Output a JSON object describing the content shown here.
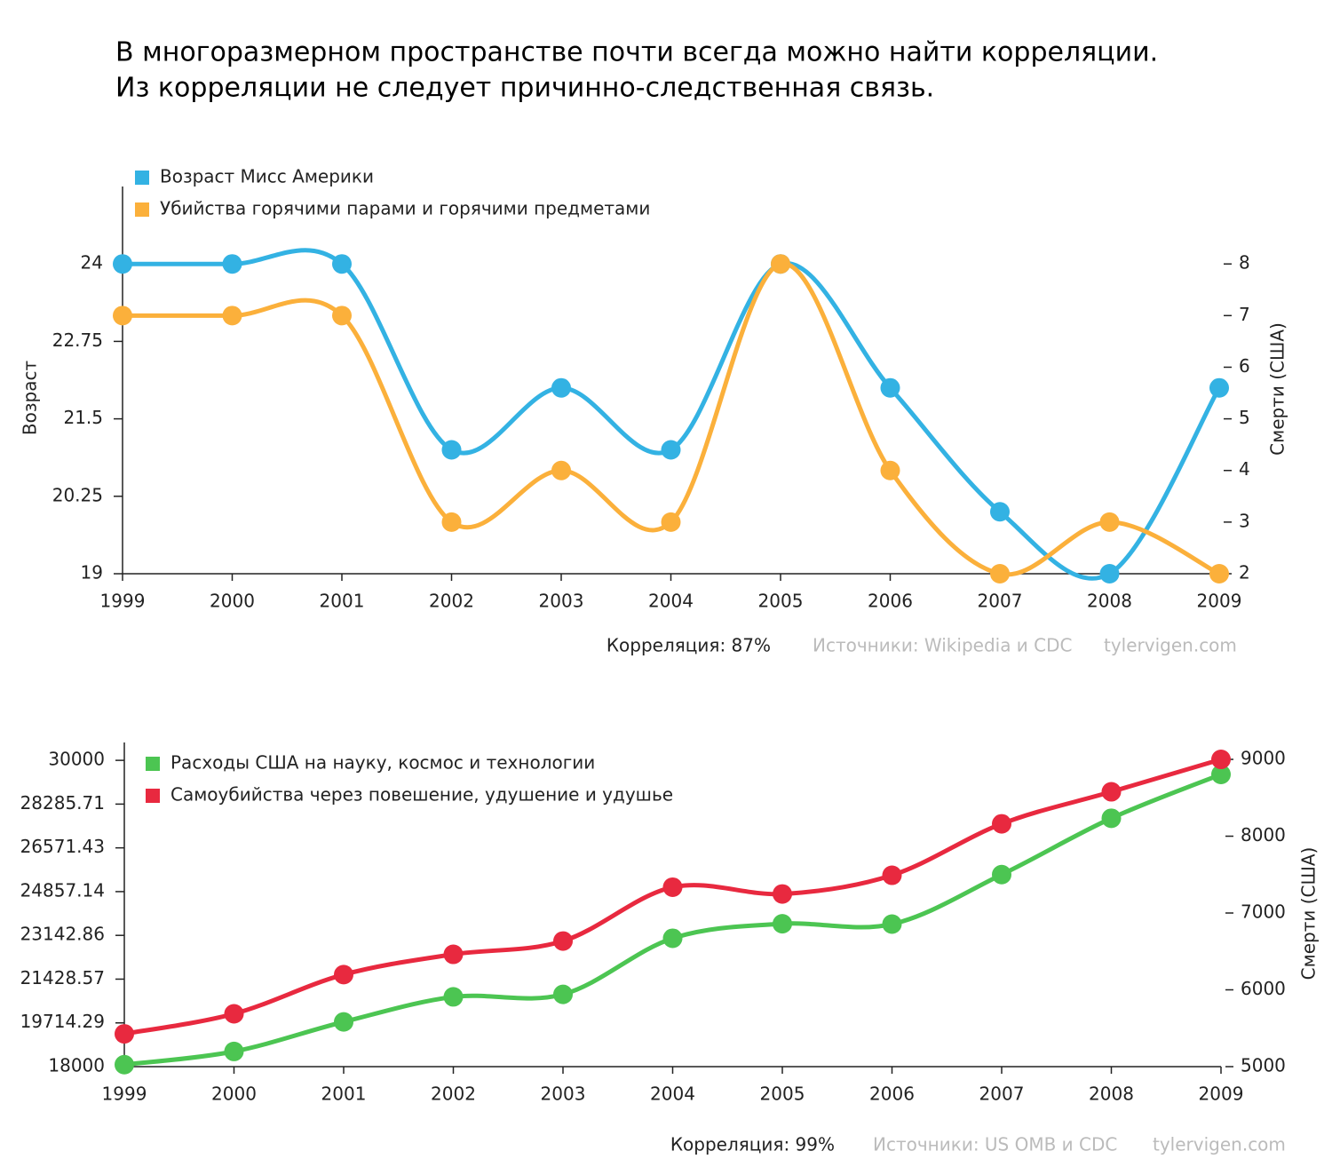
{
  "title": [
    "В многоразмерном пространстве почти всегда можно найти корреляции.",
    "Из корреляции не следует причинно-следственная связь."
  ],
  "chart_data": [
    {
      "type": "line",
      "ylabel": "Возраст",
      "y2label": "Смерти (США)",
      "categories": [
        "1999",
        "2000",
        "2001",
        "2002",
        "2003",
        "2004",
        "2005",
        "2006",
        "2007",
        "2008",
        "2009"
      ],
      "series": [
        {
          "name": "Возраст Мисс Америки",
          "color": "#33b2e3",
          "axis": "y",
          "values": [
            24,
            24,
            24,
            21,
            22,
            21,
            24,
            22,
            20,
            19,
            22
          ]
        },
        {
          "name": "Убийства горячими парами и горячими предметами",
          "color": "#fbb03b",
          "axis": "y2",
          "values": [
            7,
            7,
            7,
            3,
            4,
            3,
            8,
            4,
            2,
            3,
            2
          ]
        }
      ],
      "ylim": [
        19,
        25.25
      ],
      "yticks": [
        19,
        20.25,
        21.5,
        22.75,
        24
      ],
      "y2lim": [
        2,
        9.5
      ],
      "y2ticks": [
        2,
        3,
        4,
        5,
        6,
        7,
        8
      ],
      "annotations": [
        "Корреляция: 87%",
        "Источники: Wikipedia и CDC",
        "tylervigen.com"
      ]
    },
    {
      "type": "line",
      "y2label": "Смерти (США)",
      "categories": [
        "1999",
        "2000",
        "2001",
        "2002",
        "2003",
        "2004",
        "2005",
        "2006",
        "2007",
        "2008",
        "2009"
      ],
      "series": [
        {
          "name": "Расходы США на науку, космос и технологии",
          "color": "#4cc552",
          "axis": "y",
          "values": [
            18079,
            18594,
            19753,
            20734,
            20831,
            23029,
            23597,
            23584,
            25525,
            27731,
            29449
          ]
        },
        {
          "name": "Самоубийства через повешение, удушение и удушье",
          "color": "#e8293f",
          "axis": "y2",
          "values": [
            5427,
            5688,
            6198,
            6462,
            6635,
            7336,
            7248,
            7491,
            8161,
            8578,
            9000
          ]
        }
      ],
      "ylim": [
        18000,
        30700
      ],
      "yticks": [
        18000,
        19714.29,
        21428.57,
        23142.86,
        24857.14,
        26571.43,
        28285.71,
        30000
      ],
      "y2lim": [
        5000,
        9220
      ],
      "y2ticks": [
        5000,
        6000,
        7000,
        8000,
        9000
      ],
      "annotations": [
        "Корреляция: 99%",
        "Источники: US OMB и CDC",
        "tylervigen.com"
      ]
    }
  ]
}
